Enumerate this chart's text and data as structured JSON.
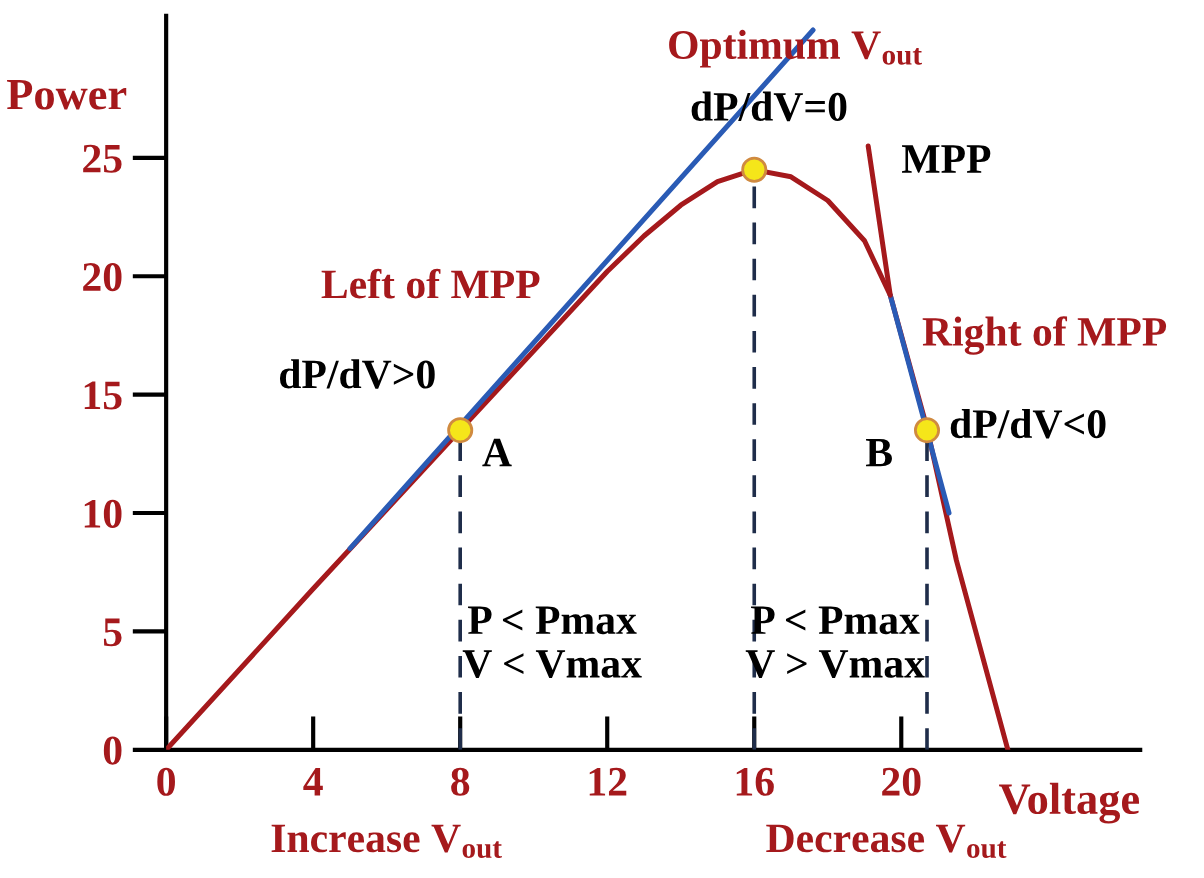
{
  "chart_data": {
    "type": "line",
    "xlabel": "Voltage",
    "ylabel": "Power",
    "xlim": [
      0,
      26.5
    ],
    "ylim": [
      0,
      31
    ],
    "xticks": [
      0,
      4,
      8,
      12,
      16,
      20
    ],
    "yticks": [
      0,
      5,
      10,
      15,
      20,
      25
    ],
    "grid": false,
    "legend": false,
    "marker": "none",
    "series": [
      {
        "color": "#a5191c",
        "x": [
          0,
          4,
          8,
          12,
          13,
          14,
          15,
          16,
          17,
          18,
          19,
          19.7,
          20.7,
          21.5,
          22.9
        ],
        "values": [
          0,
          6.8,
          13.5,
          20.2,
          21.7,
          23,
          24,
          24.5,
          24.2,
          23.2,
          21.5,
          19.2,
          13.6,
          8,
          0
        ]
      },
      {
        "color": "#2a5bb5",
        "x": [
          5,
          17.6
        ],
        "values": [
          8.5,
          30.4
        ]
      },
      {
        "color": "#2a5bb5",
        "x": [
          19.7,
          21.3
        ],
        "values": [
          19.2,
          10
        ]
      },
      {
        "color": "#a5191c",
        "x": [
          19.1,
          19.7
        ],
        "values": [
          25.5,
          19.2
        ]
      },
      {
        "color": "#1f2d4a",
        "line_style": "dashed",
        "x": [
          8,
          8
        ],
        "values": [
          0,
          13.5
        ]
      },
      {
        "color": "#1f2d4a",
        "line_style": "dashed",
        "x": [
          16,
          16
        ],
        "values": [
          0,
          24.5
        ]
      },
      {
        "color": "#1f2d4a",
        "line_style": "dashed",
        "x": [
          20.7,
          20.7
        ],
        "values": [
          0,
          13.5
        ]
      },
      {
        "type": "scatter",
        "marker": "circle",
        "color": "#f5e61a",
        "x": [
          8,
          16,
          20.7
        ],
        "values": [
          13.5,
          24.5,
          13.5
        ]
      }
    ],
    "annotations": [
      "Optimum V$_{out}$",
      "dP/dV=0",
      "MPP",
      "Left of MPP",
      "Right of MPP",
      "dP/dV>0",
      "A",
      "B",
      "dP/dV<0",
      "P < Pmax\nV < Vmax",
      "P < Pmax\nV > Vmax",
      "Increase V$_{out}$",
      "Decrease V$_{out}$"
    ]
  }
}
